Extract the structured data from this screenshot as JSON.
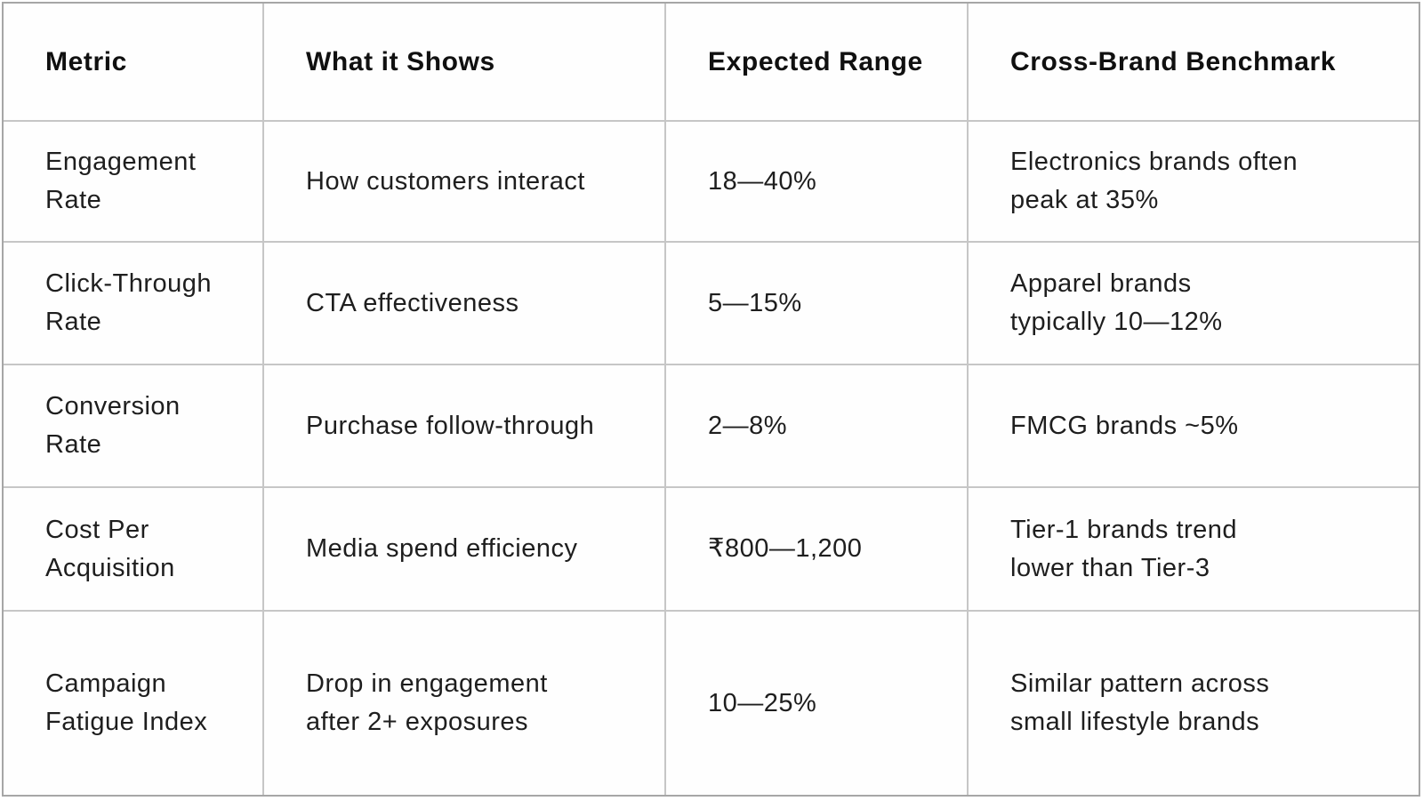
{
  "chart_data": {
    "type": "table",
    "title": "Campaign metric benchmark table",
    "columns": [
      "Metric",
      "What it Shows",
      "Expected Range",
      "Cross-Brand Benchmark"
    ],
    "rows": [
      [
        "Engagement\nRate",
        "How customers interact",
        "18—40%",
        "Electronics brands often\npeak at 35%"
      ],
      [
        "Click-Through\nRate",
        "CTA effectiveness",
        "5—15%",
        "Apparel brands\ntypically 10—12%"
      ],
      [
        "Conversion\nRate",
        "Purchase follow-through",
        "2—8%",
        "FMCG brands ~5%"
      ],
      [
        "Cost Per\nAcquisition",
        "Media spend efficiency",
        "₹800—1,200",
        "Tier-1 brands trend\nlower than Tier-3"
      ],
      [
        "Campaign\nFatigue Index",
        "Drop in engagement\nafter 2+ exposures",
        "10—25%",
        "Similar pattern across\nsmall lifestyle brands"
      ]
    ]
  },
  "colors": {
    "outer_border": "#a6a6a6",
    "grid_line": "#c6c6c6",
    "cell_background": "#fefefe",
    "header_text": "#101010",
    "body_text": "#1e1e1e"
  }
}
